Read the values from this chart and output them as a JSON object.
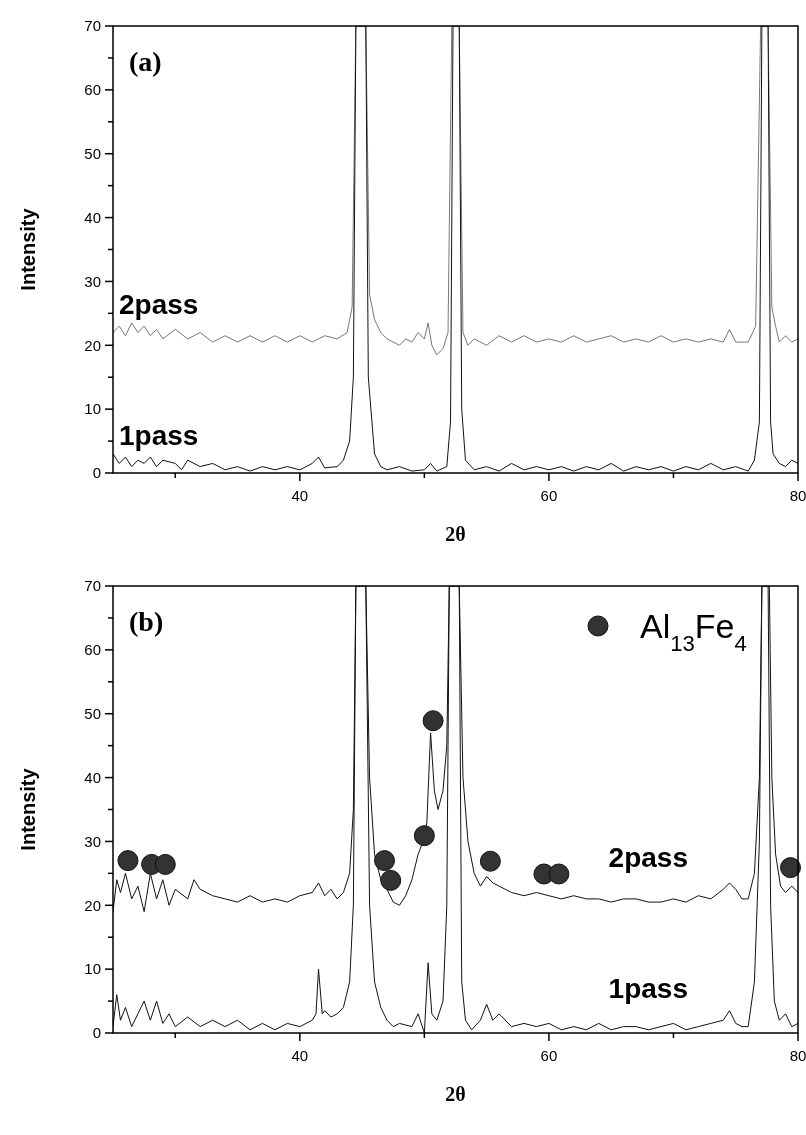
{
  "chart_data": [
    {
      "type": "line",
      "title": "(a)",
      "xlabel": "2θ",
      "ylabel": "Intensity",
      "xlim": [
        25,
        80
      ],
      "ylim": [
        0,
        70
      ],
      "xticks": [
        {
          "value": 30,
          "label": null
        },
        40,
        {
          "value": 50,
          "label": null
        },
        60,
        {
          "value": 70,
          "label": null
        },
        80
      ],
      "yticks": [
        0,
        {
          "value": 5,
          "label": null
        },
        10,
        {
          "value": 15,
          "label": null
        },
        20,
        {
          "value": 25,
          "label": null
        },
        30,
        {
          "value": 35,
          "label": null
        },
        40,
        {
          "value": 45,
          "label": null
        },
        50,
        {
          "value": 55,
          "label": null
        },
        60,
        {
          "value": 65,
          "label": null
        },
        70
      ],
      "grid": false,
      "line_style": "solid",
      "legend": false,
      "series": [
        {
          "name": "2pass",
          "color": "#777777",
          "x": [
            25,
            25.5,
            26,
            26.5,
            27,
            27.5,
            28,
            28.5,
            29,
            30,
            31,
            32,
            33,
            34,
            35,
            36,
            37,
            38,
            39,
            40,
            41,
            42,
            43,
            43.8,
            44.2,
            44.5,
            45.3,
            45.6,
            46,
            46.5,
            47,
            48,
            48.5,
            49,
            49.5,
            50,
            50.3,
            50.6,
            51,
            51.5,
            51.9,
            52.2,
            52.8,
            53.1,
            53.5,
            54,
            55,
            56,
            57,
            58,
            59,
            60,
            61,
            62,
            63,
            64,
            65,
            66,
            67,
            68,
            69,
            70,
            71,
            72,
            73,
            74,
            74.5,
            75,
            76,
            76.6,
            77,
            77.6,
            77.9,
            78.2,
            78.5,
            79,
            79.5,
            80
          ],
          "values": [
            22,
            23,
            21.5,
            23.5,
            22,
            23,
            21.5,
            22.5,
            21,
            22.5,
            21,
            22,
            20.5,
            21.5,
            20.5,
            21.5,
            20.5,
            21.5,
            20.5,
            21.5,
            20.5,
            21.5,
            21,
            22,
            26,
            70,
            70,
            28,
            24,
            22,
            21,
            20,
            21,
            20.5,
            22,
            21,
            23.5,
            20,
            18.5,
            19.5,
            22,
            70,
            70,
            22,
            20,
            21,
            20,
            21.5,
            20.5,
            21.5,
            20.5,
            21,
            20.5,
            21.5,
            20.5,
            21,
            21.5,
            20.5,
            21,
            20.5,
            21.5,
            20.5,
            21,
            20.5,
            21,
            20.5,
            22.5,
            20.5,
            20.5,
            23,
            70,
            70,
            26,
            23,
            20.5,
            21.5,
            20.5,
            21
          ]
        },
        {
          "name": "1pass",
          "color": "#111111",
          "x": [
            25,
            25.5,
            26,
            26.5,
            27,
            27.5,
            28,
            28.5,
            29,
            30,
            30.5,
            31,
            32,
            33,
            34,
            35,
            36,
            37,
            38,
            39,
            40,
            41,
            41.5,
            42,
            43,
            43.5,
            44,
            44.3,
            44.5,
            45.3,
            45.5,
            46,
            46.5,
            47,
            48,
            49,
            50,
            50.5,
            51,
            51.8,
            52.1,
            52.3,
            52.8,
            53,
            53.3,
            54,
            55,
            56,
            57,
            58,
            59,
            60,
            61,
            62,
            63,
            64,
            65,
            66,
            67,
            68,
            69,
            70,
            71,
            72,
            73,
            74,
            75,
            76,
            76.5,
            76.9,
            77.1,
            77.6,
            77.8,
            78,
            78.5,
            79,
            79.5,
            80
          ],
          "values": [
            3,
            1.5,
            2.5,
            1,
            2,
            1.5,
            2.5,
            1,
            2,
            1.5,
            0.5,
            2,
            1,
            1.5,
            0.5,
            1,
            0.3,
            1,
            0.5,
            1,
            0.5,
            1.5,
            2.5,
            0.8,
            1,
            2,
            5,
            15,
            70,
            70,
            15,
            3,
            1,
            0.5,
            1,
            0.3,
            0.5,
            1.5,
            0.3,
            1,
            8,
            70,
            70,
            10,
            2,
            0.5,
            1,
            0.3,
            1.5,
            0.5,
            1,
            0.5,
            1,
            0.3,
            1,
            0.5,
            1.5,
            0.3,
            1,
            0.5,
            1,
            0.3,
            1,
            0.5,
            1.5,
            0.5,
            1,
            0.3,
            2,
            8,
            70,
            70,
            8,
            3,
            1.5,
            1,
            2,
            1.5
          ]
        }
      ]
    },
    {
      "type": "line",
      "title": "(b)",
      "xlabel": "2θ",
      "ylabel": "Intensity",
      "xlim": [
        25,
        80
      ],
      "ylim": [
        0,
        70
      ],
      "xticks": [
        {
          "value": 30,
          "label": null
        },
        40,
        {
          "value": 50,
          "label": null
        },
        60,
        {
          "value": 70,
          "label": null
        },
        80
      ],
      "yticks": [
        0,
        {
          "value": 5,
          "label": null
        },
        10,
        {
          "value": 15,
          "label": null
        },
        20,
        {
          "value": 25,
          "label": null
        },
        30,
        {
          "value": 35,
          "label": null
        },
        40,
        {
          "value": 45,
          "label": null
        },
        50,
        {
          "value": 55,
          "label": null
        },
        60,
        {
          "value": 65,
          "label": null
        },
        70
      ],
      "grid": false,
      "line_style": "solid",
      "legend": "top right",
      "series": [
        {
          "name": "2pass",
          "color": "#111111",
          "x": [
            25,
            25.3,
            25.6,
            26,
            26.5,
            27,
            27.5,
            28,
            28.5,
            29,
            29.5,
            30,
            31,
            31.5,
            32,
            33,
            34,
            35,
            36,
            37,
            38,
            39,
            40,
            41,
            41.5,
            42,
            42.5,
            43,
            43.5,
            44,
            44.3,
            44.5,
            45.3,
            45.6,
            46,
            46.5,
            47,
            47.5,
            48,
            48.5,
            49,
            49.5,
            49.9,
            50.2,
            50.5,
            50.8,
            51.1,
            51.5,
            51.8,
            52,
            52.8,
            53.1,
            53.5,
            54,
            54.5,
            55,
            55.5,
            56,
            57,
            58,
            59,
            60,
            61,
            62,
            63,
            64,
            65,
            66,
            67,
            68,
            69,
            70,
            71,
            72,
            73,
            74,
            74.5,
            75,
            75.5,
            76,
            76.5,
            76.9,
            77.1,
            77.7,
            77.9,
            78.2,
            78.6,
            79,
            79.5,
            80
          ],
          "values": [
            19,
            24,
            22,
            25,
            21,
            23,
            19,
            25,
            21,
            24,
            20,
            22.5,
            21,
            24,
            22.5,
            21.5,
            21,
            20.5,
            21.5,
            20.5,
            21,
            20.5,
            21.5,
            22,
            23.5,
            21.5,
            22.5,
            21,
            22,
            25,
            35,
            70,
            70,
            40,
            28,
            24,
            22.5,
            20.5,
            20,
            21.5,
            24,
            28,
            30,
            33,
            47,
            38,
            35,
            38,
            45,
            70,
            70,
            40,
            30,
            25,
            23,
            24.5,
            23.5,
            23,
            22,
            21.5,
            22,
            21.5,
            21,
            21.5,
            21,
            21,
            20.5,
            21,
            21,
            20.5,
            20.5,
            21,
            20.5,
            21.5,
            21,
            22.5,
            23.5,
            22.5,
            21,
            21,
            25,
            40,
            70,
            70,
            40,
            28,
            23,
            22,
            23,
            22
          ]
        },
        {
          "name": "1pass",
          "color": "#111111",
          "x": [
            25,
            25.3,
            25.6,
            26,
            26.5,
            27,
            27.5,
            28,
            28.5,
            29,
            29.5,
            30,
            31,
            32,
            33,
            34,
            35,
            36,
            37,
            38,
            39,
            40,
            41,
            41.3,
            41.5,
            41.8,
            42,
            42.5,
            43,
            43.5,
            44,
            44.3,
            44.5,
            45.3,
            45.6,
            46,
            46.5,
            47,
            47.5,
            48,
            49,
            49.5,
            50,
            50.3,
            50.6,
            51,
            51.5,
            51.8,
            52,
            52.8,
            53,
            53.3,
            53.8,
            54.5,
            55,
            55.5,
            56,
            57,
            58,
            59,
            60,
            61,
            62,
            63,
            64,
            65,
            66,
            67,
            68,
            69,
            70,
            71,
            72,
            73,
            74,
            74.5,
            75,
            75.5,
            76,
            76.5,
            76.9,
            77.1,
            77.6,
            77.8,
            78.1,
            78.5,
            79,
            79.5,
            80
          ],
          "values": [
            1,
            6,
            2,
            4,
            1,
            3,
            5,
            2,
            5,
            1.5,
            3,
            1,
            2.5,
            1,
            2,
            1,
            2,
            0.5,
            1.5,
            0.5,
            1.5,
            1,
            2,
            3,
            10,
            3,
            3.5,
            2.5,
            3,
            4,
            8,
            20,
            70,
            70,
            20,
            8,
            4,
            2,
            1,
            1.5,
            1,
            3,
            0,
            11,
            3,
            2,
            5,
            20,
            70,
            70,
            8,
            2,
            0.5,
            2,
            4.5,
            2,
            3,
            1,
            1.5,
            1,
            1.5,
            0.5,
            1,
            0.5,
            1.5,
            0.5,
            1,
            1,
            0.5,
            1,
            1.5,
            0.5,
            1,
            1.5,
            2,
            3.5,
            1.5,
            1,
            1,
            8,
            30,
            70,
            70,
            20,
            5,
            2,
            3,
            1,
            1.5
          ]
        },
        {
          "name": "Al$_{13}$Fe$_{4}$",
          "type": "scatter",
          "marker": "circle",
          "color": "#333333",
          "x": [
            26.2,
            28.1,
            29.2,
            46.8,
            47.3,
            50.0,
            50.7,
            55.3,
            59.6,
            60.8,
            79.4
          ],
          "values": [
            27.0,
            26.4,
            26.4,
            27.0,
            23.9,
            30.9,
            48.9,
            26.9,
            24.9,
            24.9,
            25.9
          ]
        }
      ]
    }
  ]
}
